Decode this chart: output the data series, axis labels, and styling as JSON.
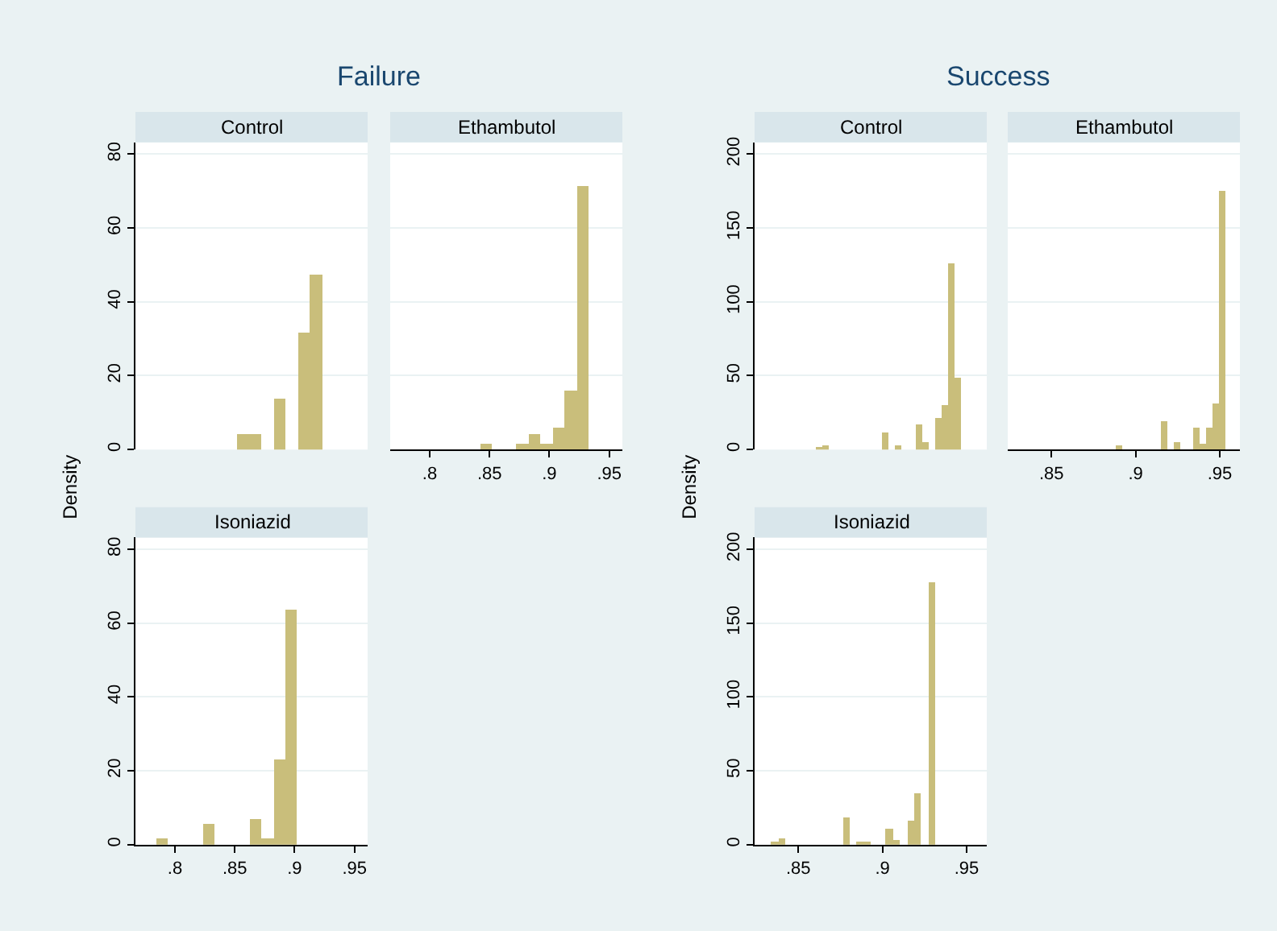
{
  "chart_data": [
    {
      "type": "histogram",
      "title": "Failure",
      "subtitle": "Control",
      "color": "#c9be7b",
      "bins": [
        0.852,
        0.8621,
        0.8722,
        0.8823,
        0.8924,
        0.9025,
        0.9126,
        0.9227
      ],
      "values": [
        4.3,
        4.3,
        0,
        13.9,
        0,
        31.8,
        47.5
      ],
      "xlim": [
        0.767,
        0.961
      ],
      "ylim": [
        0,
        83.2
      ],
      "yticks": [
        0,
        20,
        40,
        60,
        80
      ],
      "grid": "y",
      "tick_labels": "y"
    },
    {
      "type": "histogram",
      "subtitle": "Ethambutol",
      "color": "#c9be7b",
      "bins": [
        0.842,
        0.8521,
        0.8622,
        0.8723,
        0.8824,
        0.8925,
        0.9026,
        0.9127,
        0.9228,
        0.9329
      ],
      "values": [
        1.4,
        0,
        0,
        1.4,
        4.3,
        1.4,
        5.8,
        15.8,
        71.3
      ],
      "xlim": [
        0.767,
        0.961
      ],
      "xticks": [
        {
          "value": 0.8,
          "label": ".8"
        },
        {
          "value": 0.85,
          "label": ".85"
        },
        {
          "value": 0.9,
          "label": ".9"
        },
        {
          "value": 0.95,
          "label": ".95"
        }
      ],
      "ylim": [
        0,
        83.2
      ],
      "yticks": [
        0,
        20,
        40,
        60,
        80
      ],
      "grid": "y",
      "tick_labels": "x"
    },
    {
      "type": "histogram",
      "subtitle": "Isoniazid",
      "ylabel": "Density",
      "color": "#c9be7b",
      "bins": [
        0.784,
        0.7938,
        0.8037,
        0.8135,
        0.8233,
        0.8332,
        0.843,
        0.8528,
        0.8626,
        0.8725,
        0.8823,
        0.8921,
        0.902
      ],
      "values": [
        1.6,
        0,
        0,
        0,
        5.6,
        0,
        0,
        0,
        6.9,
        1.6,
        23,
        63.5
      ],
      "xlim": [
        0.767,
        0.961
      ],
      "xticks": [
        {
          "value": 0.8,
          "label": ".8"
        },
        {
          "value": 0.85,
          "label": ".85"
        },
        {
          "value": 0.9,
          "label": ".9"
        },
        {
          "value": 0.95,
          "label": ".95"
        }
      ],
      "ylim": [
        0,
        83.2
      ],
      "yticks": [
        0,
        20,
        40,
        60,
        80
      ],
      "grid": "y"
    },
    {
      "type": "histogram",
      "title": "Success",
      "subtitle": "Control",
      "color": "#c9be7b",
      "bins": [
        0.8603,
        0.8642,
        0.8682,
        0.8721,
        0.8761,
        0.88,
        0.8839,
        0.8879,
        0.8918,
        0.8958,
        0.8997,
        0.9036,
        0.9076,
        0.9115,
        0.9155,
        0.9194,
        0.9233,
        0.9273,
        0.9312,
        0.9352,
        0.9391,
        0.943,
        0.947
      ],
      "values": [
        2,
        3,
        0,
        0,
        0,
        0,
        0,
        0,
        0,
        0,
        12,
        0,
        3,
        0,
        0,
        17,
        5,
        0,
        22,
        30,
        126,
        49
      ],
      "xlim": [
        0.824,
        0.962
      ],
      "ylim": [
        0,
        208
      ],
      "yticks": [
        0,
        50,
        100,
        150,
        200
      ],
      "grid": "y",
      "tick_labels": "y"
    },
    {
      "type": "histogram",
      "subtitle": "Ethambutol",
      "color": "#c9be7b",
      "bins": [
        0.8885,
        0.8923,
        0.8962,
        0.9,
        0.9039,
        0.9077,
        0.9115,
        0.9154,
        0.9192,
        0.9231,
        0.9269,
        0.9307,
        0.9346,
        0.9384,
        0.9423,
        0.9461,
        0.95,
        0.9538
      ],
      "values": [
        3,
        0,
        0,
        0,
        0,
        0,
        0,
        19,
        0,
        5,
        0,
        0,
        15,
        4,
        15,
        31,
        175
      ],
      "xlim": [
        0.824,
        0.962
      ],
      "xticks": [
        {
          "value": 0.85,
          "label": ".85"
        },
        {
          "value": 0.9,
          "label": ".9"
        },
        {
          "value": 0.95,
          "label": ".95"
        }
      ],
      "ylim": [
        0,
        208
      ],
      "yticks": [
        0,
        50,
        100,
        150,
        200
      ],
      "grid": "y",
      "tick_labels": "x"
    },
    {
      "type": "histogram",
      "subtitle": "Isoniazid",
      "ylabel": "Density",
      "color": "#c9be7b",
      "bins": [
        0.8337,
        0.838,
        0.8422,
        0.8465,
        0.8507,
        0.855,
        0.8592,
        0.8635,
        0.8677,
        0.872,
        0.8763,
        0.8805,
        0.8848,
        0.889,
        0.8933,
        0.8975,
        0.9018,
        0.906,
        0.9103,
        0.9146,
        0.9188,
        0.9231,
        0.9273,
        0.9316
      ],
      "values": [
        1,
        4,
        0,
        0,
        0,
        0,
        0,
        0,
        0,
        0,
        18,
        0,
        1,
        1,
        0,
        0,
        11,
        3,
        0,
        16,
        35,
        0,
        177
      ],
      "xlim": [
        0.824,
        0.962
      ],
      "xticks": [
        {
          "value": 0.85,
          "label": ".85"
        },
        {
          "value": 0.9,
          "label": ".9"
        },
        {
          "value": 0.95,
          "label": ".95"
        }
      ],
      "ylim": [
        0,
        208
      ],
      "yticks": [
        0,
        50,
        100,
        150,
        200
      ],
      "grid": "y"
    }
  ]
}
